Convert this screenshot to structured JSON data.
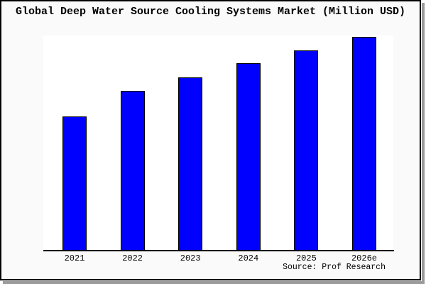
{
  "window": {
    "title": "Global Deep Water Source Cooling Systems Market (Million USD)",
    "source_note": "Source: Prof Research"
  },
  "colors": {
    "bar_fill": "#0000ff",
    "bar_border": "#000000",
    "canvas_background": "#fafafa",
    "plot_background": "#ffffff",
    "axis_line": "#000000",
    "frame_border": "#000000",
    "frame_shadow": "#9b9b9b",
    "text": "#000000"
  },
  "chart_data": {
    "type": "bar",
    "title": "Global Deep Water Source Cooling Systems Market (Million USD)",
    "units": "Million USD",
    "categories": [
      "2021",
      "2022",
      "2023",
      "2024",
      "2025",
      "2026e"
    ],
    "values": [
      188,
      224,
      243,
      263,
      281,
      300
    ],
    "values_note": "No y-axis scale is shown in the image; values are relative bar heights (pixels), max bar = 300",
    "xlabel": "",
    "ylabel": "",
    "ylim": [
      0,
      302
    ],
    "grid": false,
    "legend": null,
    "source": "Source: Prof Research"
  }
}
